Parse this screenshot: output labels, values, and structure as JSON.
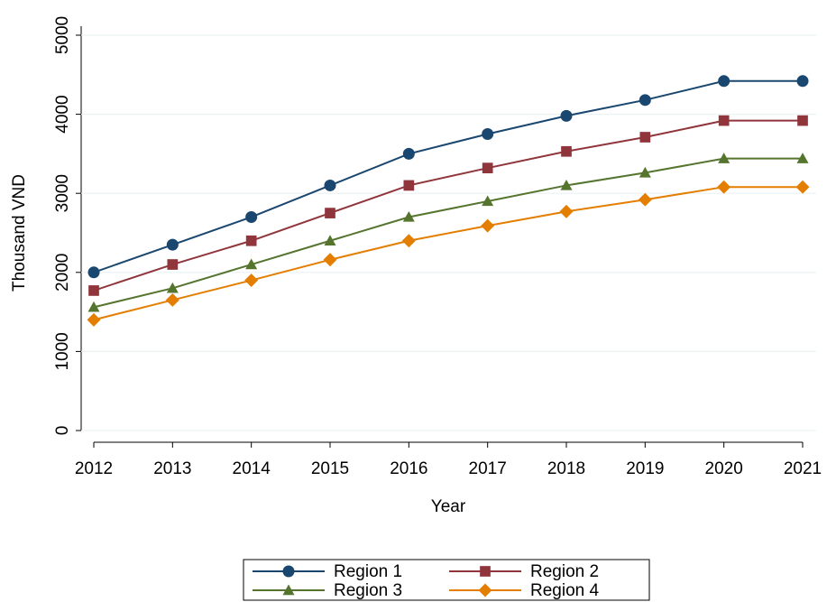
{
  "chart_data": {
    "type": "line",
    "x_label": "Year",
    "y_label": "Thousand VND",
    "x": [
      2012,
      2013,
      2014,
      2015,
      2016,
      2017,
      2018,
      2019,
      2020,
      2021
    ],
    "xlim": [
      2012,
      2021
    ],
    "xticks": [
      2012,
      2013,
      2014,
      2015,
      2016,
      2017,
      2018,
      2019,
      2020,
      2021
    ],
    "ylim": [
      0,
      5000
    ],
    "yticks": [
      0,
      1000,
      2000,
      3000,
      4000,
      5000
    ],
    "grid": true,
    "legend": "bottom",
    "series": [
      {
        "name": "Region 1",
        "color": "#1a476f",
        "marker": "circle",
        "values": [
          2000,
          2350,
          2700,
          3100,
          3500,
          3750,
          3980,
          4180,
          4420,
          4420
        ]
      },
      {
        "name": "Region 2",
        "color": "#90353b",
        "marker": "square",
        "values": [
          1770,
          2100,
          2400,
          2750,
          3100,
          3320,
          3530,
          3710,
          3920,
          3920
        ]
      },
      {
        "name": "Region 3",
        "color": "#55752f",
        "marker": "triangle",
        "values": [
          1560,
          1800,
          2100,
          2400,
          2700,
          2900,
          3100,
          3260,
          3440,
          3440
        ]
      },
      {
        "name": "Region 4",
        "color": "#e37e00",
        "marker": "diamond",
        "values": [
          1400,
          1650,
          1900,
          2160,
          2400,
          2590,
          2770,
          2920,
          3080,
          3080
        ]
      }
    ]
  }
}
